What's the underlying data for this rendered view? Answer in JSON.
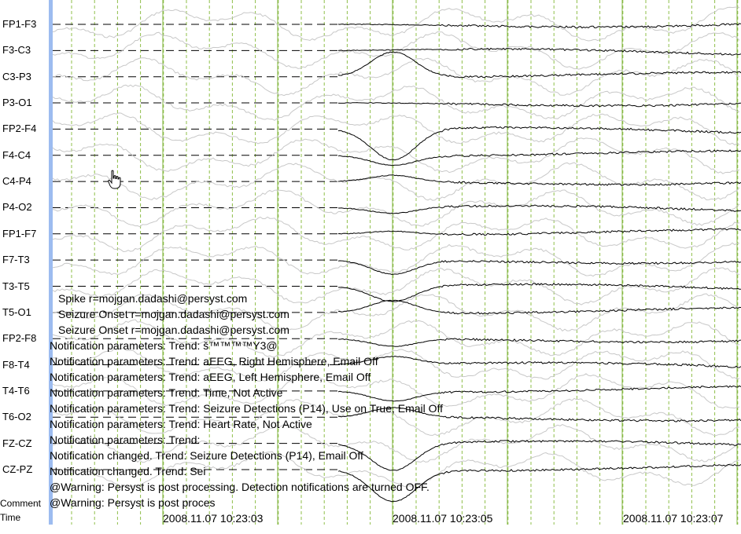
{
  "channels": [
    "FP1-F3",
    "F3-C3",
    "C3-P3",
    "P3-O1",
    "FP2-F4",
    "F4-C4",
    "C4-P4",
    "P4-O2",
    "FP1-F7",
    "F7-T3",
    "T3-T5",
    "T5-O1",
    "FP2-F8",
    "F8-T4",
    "T4-T6",
    "T6-O2",
    "FZ-CZ",
    "CZ-PZ"
  ],
  "bottom_rows": {
    "comment": "Comment",
    "time": "Time"
  },
  "annotations": [
    "Spike r=mojgan.dadashi@persyst.com",
    "Seizure Onset r=mojgan.dadashi@persyst.com",
    "Seizure Onset r=mojgan.dadashi@persyst.com",
    "Notification parameters: Trend: š™™™™Y3@",
    "Notification parameters: Trend: aEEG, Right Hemisphere, Email Off",
    "Notification parameters: Trend: aEEG, Left Hemisphere, Email Off",
    "Notification parameters: Trend: Time, Not Active",
    "Notification parameters: Trend: Seizure Detections (P14), Use on True, Email Off",
    "Notification parameters: Trend: Heart Rate, Not Active",
    "Notification parameters: Trend:",
    "Notification changed. Trend: Seizure Detections (P14), Email Off",
    "Notification changed. Trend: Sei",
    "@Warning: Persyst is post processing. Detection notifications are turned OFF.",
    "@Warning: Persyst is post proces"
  ],
  "timestamps": [
    "2008.11.07 10:23:03",
    "2008.11.07 10:23:05",
    "2008.11.07 10:23:07"
  ],
  "colors": {
    "major_grid": "#7fb33d",
    "minor_grid": "#8fbf4a",
    "baseline": "#000000",
    "trace_primary": "#000000",
    "trace_secondary": "#c8c8c8",
    "scroll_bar": "#9dbcf0"
  },
  "icons": {
    "cursor": "hand-pointer-icon"
  }
}
